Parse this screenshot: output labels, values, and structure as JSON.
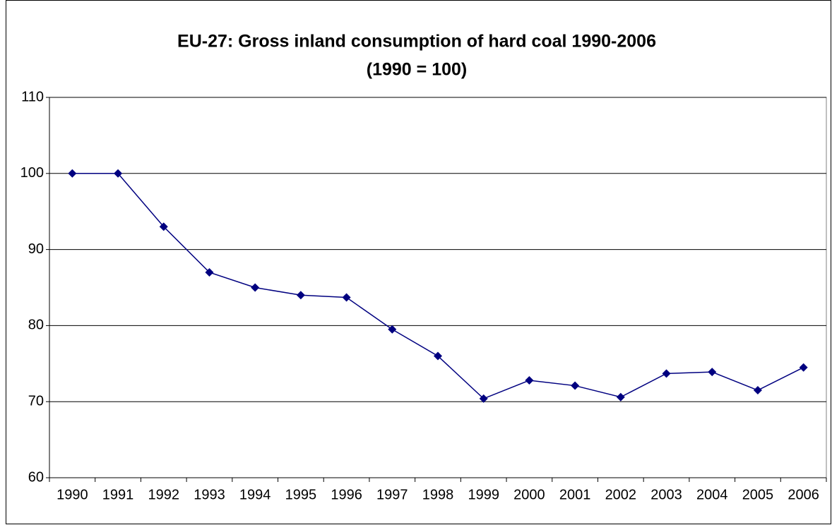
{
  "chart_data": {
    "type": "line",
    "title": "EU-27: Gross inland consumption of hard coal 1990-2006",
    "subtitle": "(1990 = 100)",
    "categories": [
      "1990",
      "1991",
      "1992",
      "1993",
      "1994",
      "1995",
      "1996",
      "1997",
      "1998",
      "1999",
      "2000",
      "2001",
      "2002",
      "2003",
      "2004",
      "2005",
      "2006"
    ],
    "series": [
      {
        "name": "Hard coal",
        "color": "#000080",
        "values": [
          100,
          100,
          93,
          87,
          85,
          84,
          83.7,
          79.5,
          76,
          70.4,
          72.8,
          72.1,
          70.6,
          73.7,
          73.9,
          71.5,
          74.5
        ]
      }
    ],
    "ylim": [
      60,
      110
    ],
    "yticks": [
      60,
      70,
      80,
      90,
      100,
      110
    ],
    "grid": true
  }
}
